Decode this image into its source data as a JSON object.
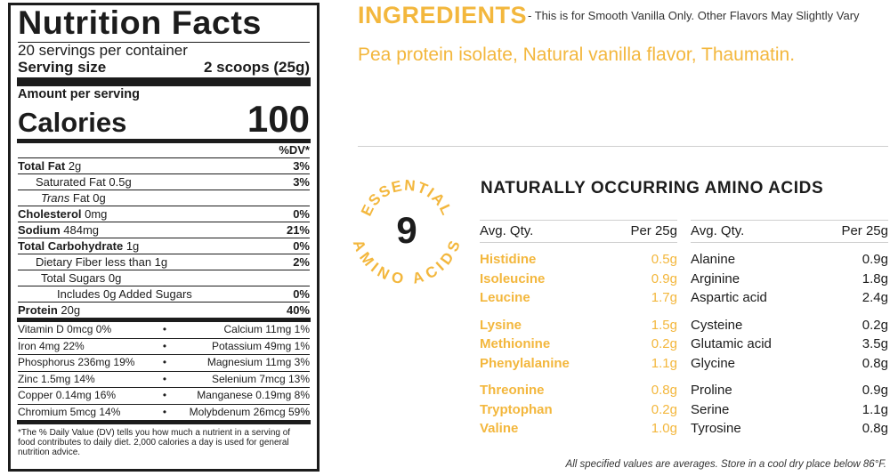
{
  "nutrition": {
    "title": "Nutrition Facts",
    "servings": "20 servings per container",
    "serving_size_label": "Serving size",
    "serving_size_value": "2 scoops (25g)",
    "amount_per_serving": "Amount per serving",
    "calories_label": "Calories",
    "calories_value": "100",
    "dv_header": "%DV*",
    "rows": [
      {
        "bold": "Total Fat",
        "text": " 2g",
        "pct": "3%"
      },
      {
        "bold": "",
        "text": "Saturated Fat 0.5g",
        "pct": "3%"
      },
      {
        "bold": "",
        "italic": "Trans",
        "text": " Fat 0g",
        "pct": ""
      },
      {
        "bold": "Cholesterol",
        "text": " 0mg",
        "pct": "0%"
      },
      {
        "bold": "Sodium",
        "text": " 484mg",
        "pct": "21%"
      },
      {
        "bold": "Total Carbohydrate",
        "text": " 1g",
        "pct": "0%"
      },
      {
        "bold": "",
        "text": "Dietary Fiber less than 1g",
        "pct": "2%"
      },
      {
        "bold": "",
        "text": "Total Sugars 0g",
        "pct": ""
      },
      {
        "bold": "",
        "text": "Includes 0g Added Sugars",
        "pct": "0%"
      },
      {
        "bold": "Protein",
        "text": " 20g",
        "pct": "40%"
      }
    ],
    "vitamins": [
      {
        "left": "Vitamin D 0mcg 0%",
        "right": "Calcium 11mg 1%"
      },
      {
        "left": "Iron 4mg 22%",
        "right": "Potassium 49mg 1%"
      },
      {
        "left": "Phosphorus 236mg 19%",
        "right": "Magnesium 11mg 3%"
      },
      {
        "left": "Zinc 1.5mg 14%",
        "right": "Selenium 7mcg 13%"
      },
      {
        "left": "Copper 0.14mg 16%",
        "right": "Manganese 0.19mg 8%"
      },
      {
        "left": "Chromium 5mcg 14%",
        "right": "Molybdenum 26mcg 59%"
      }
    ],
    "bullet": "•",
    "footnote": "*The % Daily Value (DV) tells you how much a nutrient in a serving of food contributes to daily diet. 2,000 calories a day is used for general nutrition advice."
  },
  "ingredients": {
    "heading": "INGREDIENTS",
    "subnote": "- This is for Smooth Vanilla Only. Other Flavors May Slightly Vary",
    "text": "Pea protein isolate, Natural vanilla flavor, Thaumatin."
  },
  "badge": {
    "top_text": "ESSENTIAL",
    "number": "9",
    "bottom_text": "AMINO ACIDS"
  },
  "amino": {
    "title": "NATURALLY OCCURRING AMINO ACIDS",
    "col_left_header": "Avg. Qty.",
    "col_right_header": "Per 25g",
    "essential_groups": [
      [
        {
          "name": "Histidine",
          "val": "0.5g"
        },
        {
          "name": "Isoleucine",
          "val": "0.9g"
        },
        {
          "name": "Leucine",
          "val": "1.7g"
        }
      ],
      [
        {
          "name": "Lysine",
          "val": "1.5g"
        },
        {
          "name": "Methionine",
          "val": "0.2g"
        },
        {
          "name": "Phenylalanine",
          "val": "1.1g"
        }
      ],
      [
        {
          "name": "Threonine",
          "val": "0.8g"
        },
        {
          "name": "Tryptophan",
          "val": "0.2g"
        },
        {
          "name": "Valine",
          "val": "1.0g"
        }
      ]
    ],
    "other_groups": [
      [
        {
          "name": "Alanine",
          "val": "0.9g"
        },
        {
          "name": "Arginine",
          "val": "1.8g"
        },
        {
          "name": "Aspartic acid",
          "val": "2.4g"
        }
      ],
      [
        {
          "name": "Cysteine",
          "val": "0.2g"
        },
        {
          "name": "Glutamic acid",
          "val": "3.5g"
        },
        {
          "name": "Glycine",
          "val": "0.8g"
        }
      ],
      [
        {
          "name": "Proline",
          "val": "0.9g"
        },
        {
          "name": "Serine",
          "val": "1.1g"
        },
        {
          "name": "Tyrosine",
          "val": "0.8g"
        }
      ]
    ],
    "note": "All specified values are averages. Store in a cool dry place below 86°F."
  },
  "colors": {
    "accent": "#f3b73d",
    "text": "#1c1c1c"
  }
}
